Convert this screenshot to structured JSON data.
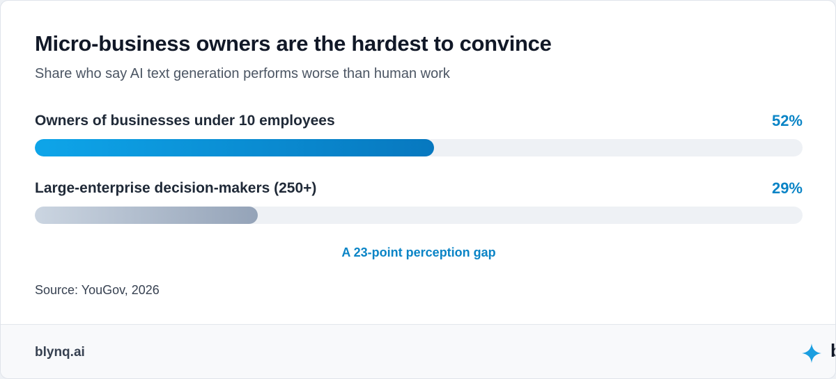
{
  "title": "Micro-business owners are the hardest to convince",
  "subtitle": "Share who say AI text generation performs worse than human work",
  "annotation": "A 23-point perception gap",
  "source": "Source: YouGov, 2026",
  "footer": {
    "url": "blynq.ai",
    "brand": "blynq",
    "brand_icon": "sparkle-icon"
  },
  "colors": {
    "accent": "#0a84c6",
    "bar_primary": "#0778bf",
    "bar_secondary": "#94a3b8",
    "track": "#eef1f5"
  },
  "chart_data": {
    "type": "bar",
    "orientation": "horizontal",
    "categories": [
      "Owners of businesses under 10 employees",
      "Large-enterprise decision-makers (250+)"
    ],
    "values": [
      52,
      29
    ],
    "value_labels": [
      "52%",
      "29%"
    ],
    "unit": "%",
    "xlim": [
      0,
      100
    ],
    "grid": false,
    "legend": "none"
  }
}
